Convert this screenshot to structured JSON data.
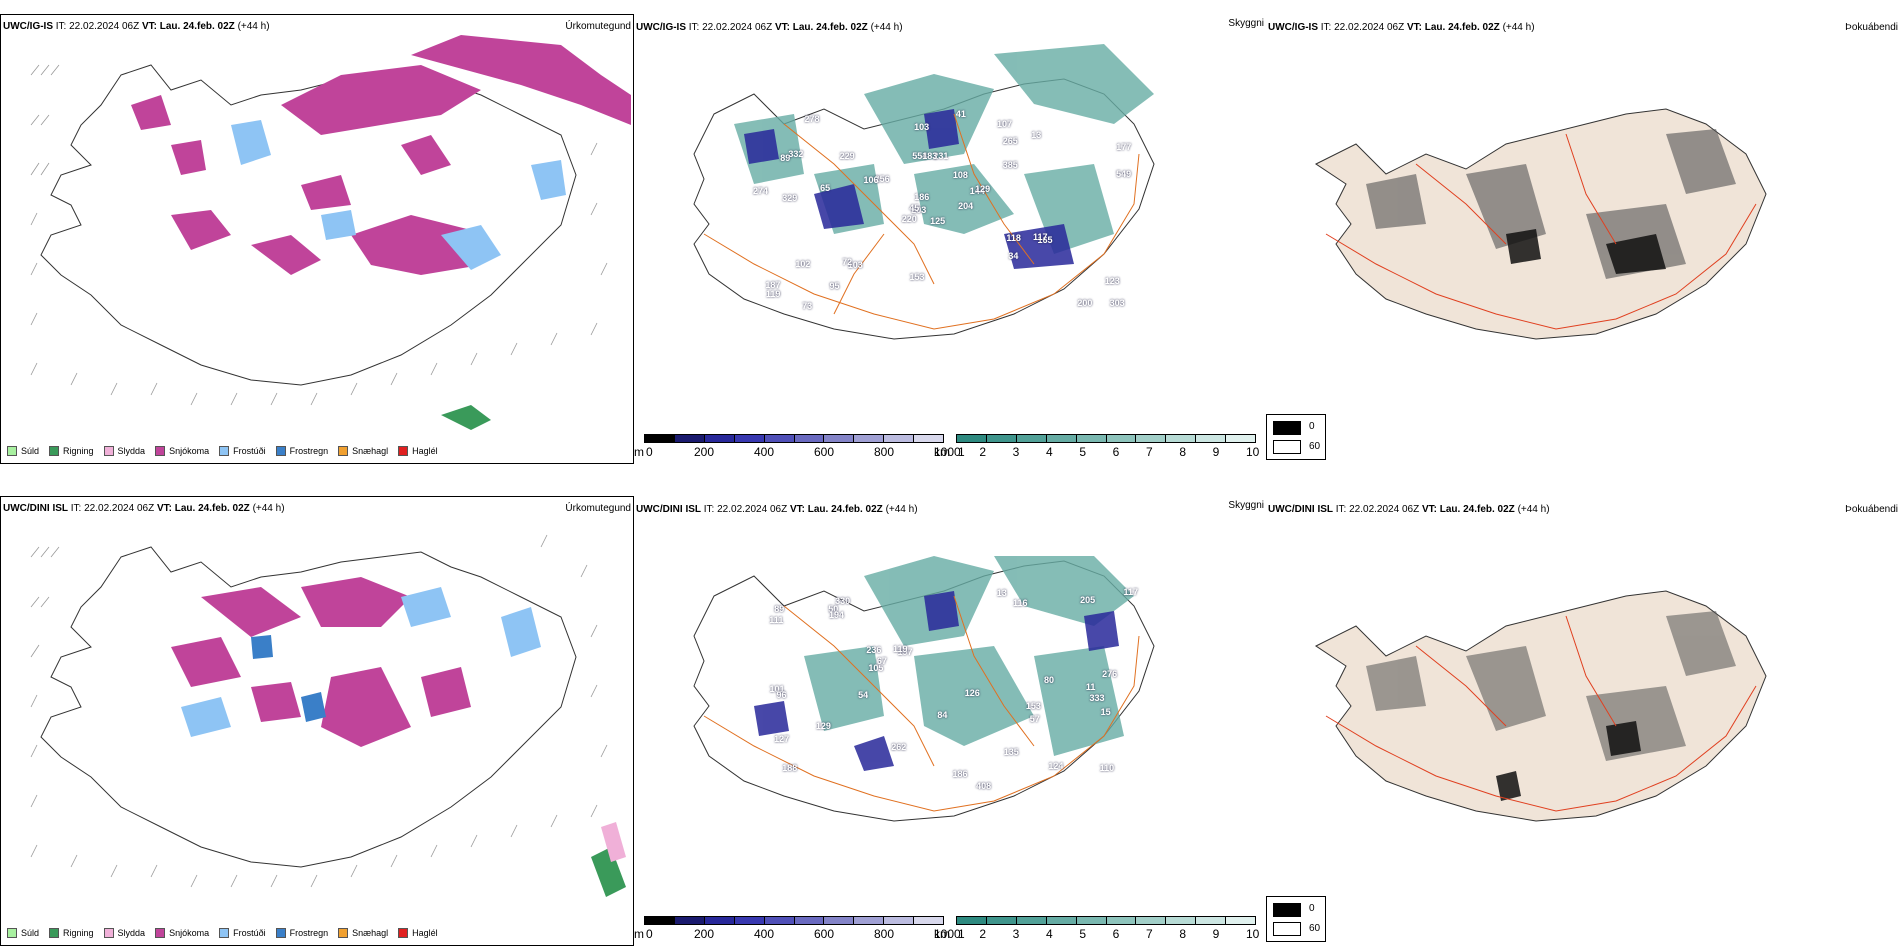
{
  "rows": [
    {
      "model": "UWC/IG-IS",
      "it_label": "IT:",
      "it_value": "22.02.2024 06Z",
      "vt_label": "VT:",
      "vt_value": "Lau. 24.feb. 02Z",
      "lead": "(+44 h)"
    },
    {
      "model": "UWC/DINI ISL",
      "it_label": "IT:",
      "it_value": "22.02.2024 06Z",
      "vt_label": "VT:",
      "vt_value": "Lau. 24.feb. 02Z",
      "lead": "(+44 h)"
    }
  ],
  "panel_titles": {
    "precip_type": "Úrkomutegund",
    "visibility": "Skyggni",
    "fog_index": "Þokuábendi"
  },
  "precip_legend": [
    {
      "label": "Súld",
      "color": "#a8f0a0"
    },
    {
      "label": "Rigning",
      "color": "#3a9a5a"
    },
    {
      "label": "Slydda",
      "color": "#f0b0d8"
    },
    {
      "label": "Snjókoma",
      "color": "#c0449a"
    },
    {
      "label": "Frostúði",
      "color": "#8ec4f4"
    },
    {
      "label": "Frostregn",
      "color": "#3a7fc8"
    },
    {
      "label": "Snæhagl",
      "color": "#f0a030"
    },
    {
      "label": "Haglél",
      "color": "#e02020"
    }
  ],
  "ceiling_scale": {
    "unit": "m",
    "ticks": [
      "0",
      "200",
      "400",
      "600",
      "800",
      "1000"
    ],
    "colors": [
      "#000000",
      "#1a1a6e",
      "#28289a",
      "#3838b0",
      "#5050b8",
      "#6a6ac0",
      "#8484c8",
      "#a0a0d4",
      "#bcbce0",
      "#d8d8ec"
    ]
  },
  "visibility_scale": {
    "unit": "km",
    "ticks": [
      "1",
      "2",
      "3",
      "4",
      "5",
      "6",
      "7",
      "8",
      "9",
      "10"
    ],
    "colors": [
      "#2e8a80",
      "#3f958c",
      "#52a198",
      "#66aca4",
      "#7ab8b0",
      "#8ec4bc",
      "#a2cfc8",
      "#b7dbd5",
      "#cce6e2",
      "#e0f1ee"
    ]
  },
  "fog_key": [
    {
      "value": "0",
      "color": "#000000"
    },
    {
      "value": "60",
      "color": "#ffffff"
    }
  ],
  "ceiling_labels_top": [
    "125",
    "89",
    "203",
    "187",
    "144",
    "103",
    "107",
    "231",
    "265",
    "204",
    "278",
    "303",
    "329",
    "177",
    "220",
    "385",
    "73",
    "554",
    "108",
    "102",
    "256",
    "119",
    "95",
    "183",
    "129",
    "165",
    "332",
    "103",
    "274",
    "118",
    "549",
    "45",
    "153",
    "186",
    "229",
    "13",
    "72",
    "200",
    "123",
    "117",
    "41",
    "106",
    "65",
    "34"
  ],
  "ceiling_labels_bottom": [
    "153",
    "333",
    "188",
    "330",
    "197",
    "124",
    "127",
    "116",
    "236",
    "408",
    "111",
    "101",
    "89",
    "110",
    "262",
    "276",
    "84",
    "126",
    "119",
    "129",
    "117",
    "205",
    "105",
    "15",
    "13",
    "50",
    "57",
    "96",
    "194",
    "80",
    "186",
    "135",
    "67",
    "54",
    "11"
  ]
}
